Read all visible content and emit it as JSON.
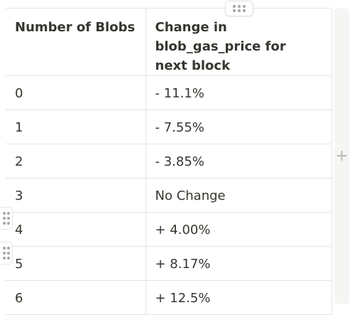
{
  "table": {
    "headers": [
      "Number of Blobs",
      "Change in blob_gas_price for next block"
    ],
    "rows": [
      [
        "0",
        "- 11.1%"
      ],
      [
        "1",
        "- 7.55%"
      ],
      [
        "2",
        "- 3.85%"
      ],
      [
        "3",
        "No Change"
      ],
      [
        "4",
        "+ 4.00%"
      ],
      [
        "5",
        "+ 8.17%"
      ],
      [
        "6",
        "+ 12.5%"
      ]
    ]
  },
  "controls": {
    "column_handle_icon": "drag-dots-horizontal-icon",
    "row_handle_icon": "drag-dots-vertical-icon",
    "add_column_icon": "plus-icon",
    "add_column_symbol": "+"
  }
}
